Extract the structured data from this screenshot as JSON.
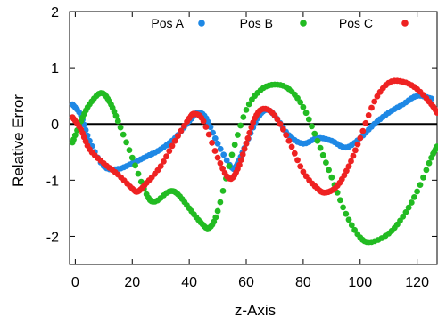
{
  "chart_data": {
    "type": "scatter",
    "xlabel": "z-Axis",
    "ylabel": "Relative Error",
    "xlim": [
      -2,
      127
    ],
    "ylim": [
      -2.5,
      2
    ],
    "x_ticks": [
      0,
      20,
      40,
      60,
      80,
      100,
      120
    ],
    "y_ticks": [
      -2,
      -1,
      0,
      1,
      2
    ],
    "reference_line_y": 0,
    "legend_position": "top",
    "series": [
      {
        "name": "Pos A",
        "color": "#1e88e5",
        "points": [
          [
            -1,
            0.35
          ],
          [
            2,
            0.15
          ],
          [
            5,
            -0.3
          ],
          [
            10,
            -0.75
          ],
          [
            15,
            -0.8
          ],
          [
            20,
            -0.7
          ],
          [
            25,
            -0.58
          ],
          [
            30,
            -0.45
          ],
          [
            35,
            -0.25
          ],
          [
            40,
            0.05
          ],
          [
            43,
            0.2
          ],
          [
            46,
            0.1
          ],
          [
            50,
            -0.35
          ],
          [
            55,
            -0.78
          ],
          [
            57,
            -0.7
          ],
          [
            60,
            -0.35
          ],
          [
            64,
            0.1
          ],
          [
            67,
            0.25
          ],
          [
            70,
            0.15
          ],
          [
            75,
            -0.2
          ],
          [
            80,
            -0.35
          ],
          [
            85,
            -0.25
          ],
          [
            90,
            -0.3
          ],
          [
            95,
            -0.42
          ],
          [
            100,
            -0.25
          ],
          [
            105,
            0.0
          ],
          [
            110,
            0.2
          ],
          [
            115,
            0.35
          ],
          [
            120,
            0.5
          ],
          [
            125,
            0.45
          ]
        ]
      },
      {
        "name": "Pos B",
        "color": "#22bb22",
        "points": [
          [
            -1,
            -0.33
          ],
          [
            2,
            0.05
          ],
          [
            5,
            0.35
          ],
          [
            9,
            0.55
          ],
          [
            12,
            0.4
          ],
          [
            15,
            0.05
          ],
          [
            20,
            -0.6
          ],
          [
            25,
            -1.25
          ],
          [
            28,
            -1.38
          ],
          [
            33,
            -1.2
          ],
          [
            36,
            -1.25
          ],
          [
            40,
            -1.5
          ],
          [
            44,
            -1.75
          ],
          [
            47,
            -1.85
          ],
          [
            50,
            -1.55
          ],
          [
            55,
            -0.55
          ],
          [
            60,
            0.25
          ],
          [
            65,
            0.6
          ],
          [
            70,
            0.7
          ],
          [
            75,
            0.62
          ],
          [
            80,
            0.3
          ],
          [
            85,
            -0.3
          ],
          [
            90,
            -0.95
          ],
          [
            95,
            -1.6
          ],
          [
            100,
            -2.02
          ],
          [
            104,
            -2.1
          ],
          [
            110,
            -1.95
          ],
          [
            115,
            -1.65
          ],
          [
            120,
            -1.2
          ],
          [
            125,
            -0.6
          ],
          [
            127,
            -0.4
          ]
        ]
      },
      {
        "name": "Pos C",
        "color": "#ee2222",
        "points": [
          [
            -1,
            0.12
          ],
          [
            2,
            -0.1
          ],
          [
            5,
            -0.45
          ],
          [
            10,
            -0.7
          ],
          [
            15,
            -0.9
          ],
          [
            20,
            -1.15
          ],
          [
            22,
            -1.2
          ],
          [
            25,
            -1.05
          ],
          [
            30,
            -0.75
          ],
          [
            35,
            -0.3
          ],
          [
            40,
            0.1
          ],
          [
            42,
            0.18
          ],
          [
            45,
            0.05
          ],
          [
            50,
            -0.6
          ],
          [
            54,
            -0.97
          ],
          [
            57,
            -0.8
          ],
          [
            60,
            -0.35
          ],
          [
            63,
            0.1
          ],
          [
            66,
            0.27
          ],
          [
            70,
            0.15
          ],
          [
            75,
            -0.3
          ],
          [
            80,
            -0.85
          ],
          [
            85,
            -1.15
          ],
          [
            88,
            -1.22
          ],
          [
            92,
            -1.1
          ],
          [
            96,
            -0.75
          ],
          [
            100,
            -0.25
          ],
          [
            105,
            0.4
          ],
          [
            110,
            0.73
          ],
          [
            115,
            0.75
          ],
          [
            120,
            0.62
          ],
          [
            125,
            0.35
          ],
          [
            127,
            0.2
          ]
        ]
      }
    ]
  }
}
